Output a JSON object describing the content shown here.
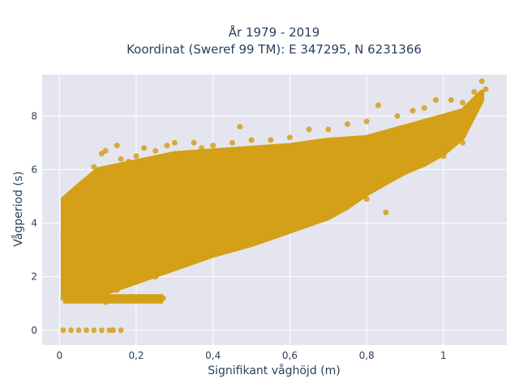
{
  "chart_data": {
    "type": "scatter",
    "title_line1": "År 1979 - 2019",
    "title_line2": "Koordinat (Sweref 99 TM): E 347295, N 6231366",
    "xlabel": "Signifikant våghöjd (m)",
    "ylabel": "Vågperiod (s)",
    "xlim": [
      -0.045,
      1.165
    ],
    "ylim": [
      -0.55,
      9.55
    ],
    "x_ticks": [
      0,
      0.2,
      0.4,
      0.6,
      0.8,
      1.0
    ],
    "x_tick_labels": [
      "0",
      "0,2",
      "0,4",
      "0,6",
      "0,8",
      "1"
    ],
    "y_ticks": [
      0,
      2,
      4,
      6,
      8
    ],
    "y_tick_labels": [
      "0",
      "2",
      "4",
      "6",
      "8"
    ],
    "grid": true,
    "marker_color": "#d4a017",
    "background_color": "#e5e5ef",
    "series": [
      {
        "points": [
          [
            0.01,
            0.0
          ],
          [
            0.03,
            0.0
          ],
          [
            0.05,
            0.0
          ],
          [
            0.07,
            0.0
          ],
          [
            0.09,
            0.0
          ],
          [
            0.11,
            0.0
          ],
          [
            0.13,
            0.0
          ],
          [
            0.14,
            0.0
          ],
          [
            0.16,
            0.0
          ],
          [
            0.01,
            1.2
          ],
          [
            0.02,
            1.8
          ],
          [
            0.02,
            2.6
          ],
          [
            0.01,
            3.5
          ],
          [
            0.02,
            4.4
          ],
          [
            0.03,
            4.8
          ],
          [
            0.05,
            5.3
          ],
          [
            0.05,
            1.1
          ],
          [
            0.07,
            5.6
          ],
          [
            0.08,
            4.1
          ],
          [
            0.09,
            6.1
          ],
          [
            0.1,
            5.9
          ],
          [
            0.11,
            6.6
          ],
          [
            0.12,
            6.7
          ],
          [
            0.12,
            1.05
          ],
          [
            0.15,
            6.9
          ],
          [
            0.16,
            6.4
          ],
          [
            0.18,
            6.3
          ],
          [
            0.2,
            6.5
          ],
          [
            0.22,
            6.8
          ],
          [
            0.25,
            6.7
          ],
          [
            0.27,
            1.2
          ],
          [
            0.28,
            6.9
          ],
          [
            0.3,
            7.0
          ],
          [
            0.32,
            6.5
          ],
          [
            0.35,
            7.0
          ],
          [
            0.37,
            6.8
          ],
          [
            0.4,
            6.9
          ],
          [
            0.45,
            7.0
          ],
          [
            0.47,
            7.6
          ],
          [
            0.5,
            7.1
          ],
          [
            0.55,
            7.1
          ],
          [
            0.6,
            7.2
          ],
          [
            0.65,
            7.5
          ],
          [
            0.7,
            7.5
          ],
          [
            0.75,
            7.7
          ],
          [
            0.8,
            7.8
          ],
          [
            0.83,
            8.4
          ],
          [
            0.88,
            8.0
          ],
          [
            0.92,
            8.2
          ],
          [
            0.95,
            8.3
          ],
          [
            0.98,
            8.6
          ],
          [
            1.02,
            8.6
          ],
          [
            1.05,
            8.5
          ],
          [
            1.08,
            8.9
          ],
          [
            1.1,
            9.3
          ],
          [
            1.11,
            9.0
          ],
          [
            0.08,
            1.4
          ],
          [
            0.15,
            1.5
          ],
          [
            0.2,
            1.8
          ],
          [
            0.25,
            2.0
          ],
          [
            0.3,
            2.4
          ],
          [
            0.35,
            2.7
          ],
          [
            0.4,
            2.9
          ],
          [
            0.45,
            3.1
          ],
          [
            0.5,
            3.3
          ],
          [
            0.55,
            3.5
          ],
          [
            0.6,
            3.8
          ],
          [
            0.65,
            4.0
          ],
          [
            0.7,
            4.3
          ],
          [
            0.75,
            4.6
          ],
          [
            0.8,
            5.2
          ],
          [
            0.85,
            5.6
          ],
          [
            0.9,
            5.9
          ],
          [
            0.95,
            6.2
          ],
          [
            1.0,
            6.5
          ],
          [
            1.05,
            7.0
          ],
          [
            1.09,
            8.5
          ],
          [
            0.85,
            4.4
          ],
          [
            0.8,
            4.9
          ],
          [
            0.66,
            4.4
          ],
          [
            0.55,
            4.8
          ],
          [
            0.45,
            4.9
          ],
          [
            0.3,
            4.5
          ],
          [
            0.2,
            4.6
          ]
        ]
      }
    ]
  }
}
